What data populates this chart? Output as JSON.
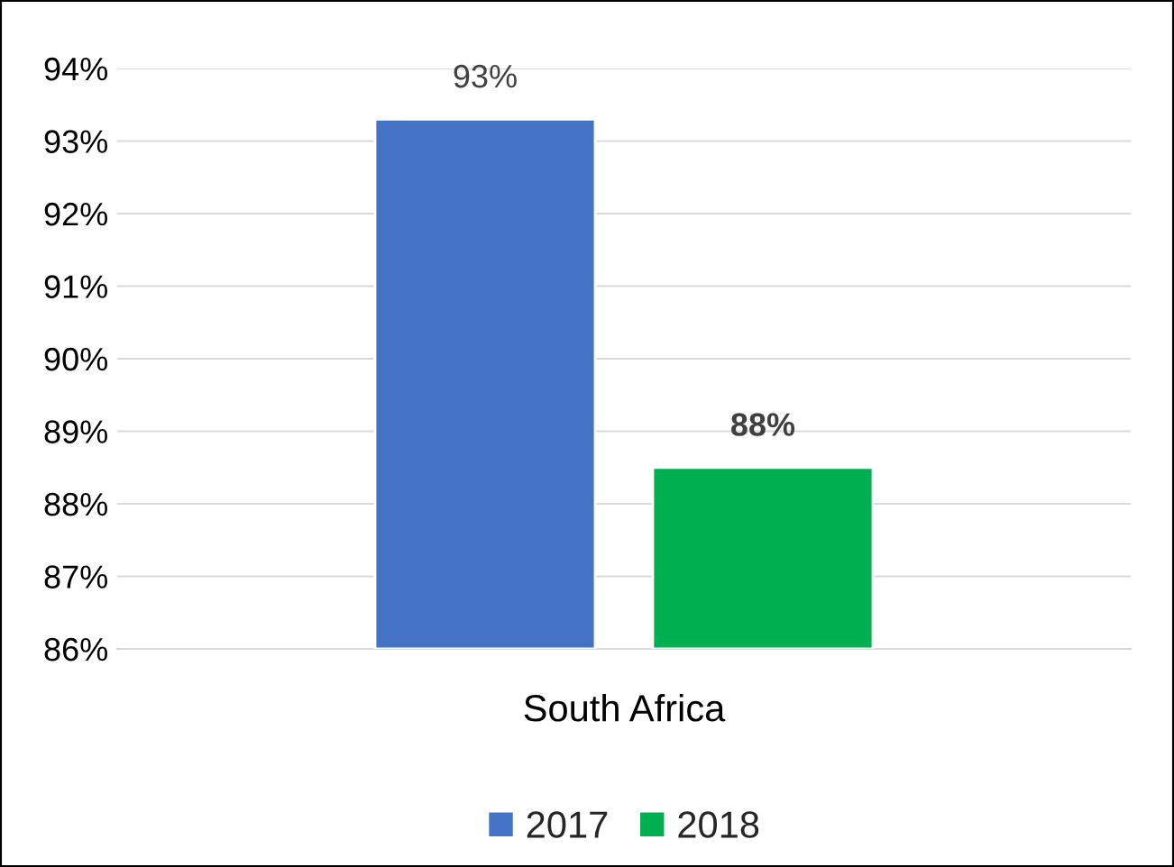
{
  "chart_data": {
    "type": "bar",
    "categories": [
      "South Africa"
    ],
    "series": [
      {
        "name": "2017",
        "color": "#4472c4",
        "values": [
          93.3
        ],
        "value_labels": [
          "93%"
        ]
      },
      {
        "name": "2018",
        "color": "#00b050",
        "values": [
          88.5
        ],
        "value_labels": [
          "88%"
        ]
      }
    ],
    "ylim": [
      86,
      94
    ],
    "yticks": [
      {
        "value": 86,
        "label": "86%"
      },
      {
        "value": 87,
        "label": "87%"
      },
      {
        "value": 88,
        "label": "88%"
      },
      {
        "value": 89,
        "label": "89%"
      },
      {
        "value": 90,
        "label": "90%"
      },
      {
        "value": 91,
        "label": "91%"
      },
      {
        "value": 92,
        "label": "92%"
      },
      {
        "value": 93,
        "label": "93%"
      },
      {
        "value": 94,
        "label": "94%"
      }
    ],
    "grid": "y",
    "legend": "bottom"
  }
}
